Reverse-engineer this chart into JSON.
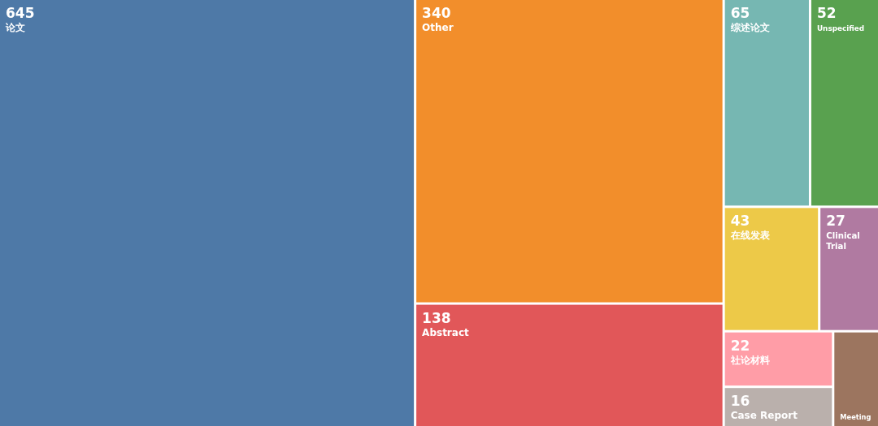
{
  "chart_data": {
    "type": "other",
    "categories": [
      "论文",
      "Other",
      "Abstract",
      "综述论文",
      "Unspecified",
      "在线发表",
      "Clinical Trial",
      "社论材料",
      "Case Report",
      "Meeting"
    ],
    "values": [
      645,
      340,
      138,
      65,
      52,
      43,
      27,
      22,
      16,
      null
    ],
    "value_labels": [
      "645",
      "340",
      "138",
      "65",
      "52",
      "43",
      "27",
      "22",
      "16",
      null
    ],
    "colors": [
      "#4e79a7",
      "#f28e2b",
      "#e15759",
      "#76b7b2",
      "#59a14f",
      "#edc948",
      "#b07aa1",
      "#ff9da7",
      "#bab0ac",
      "#9c755f"
    ]
  }
}
